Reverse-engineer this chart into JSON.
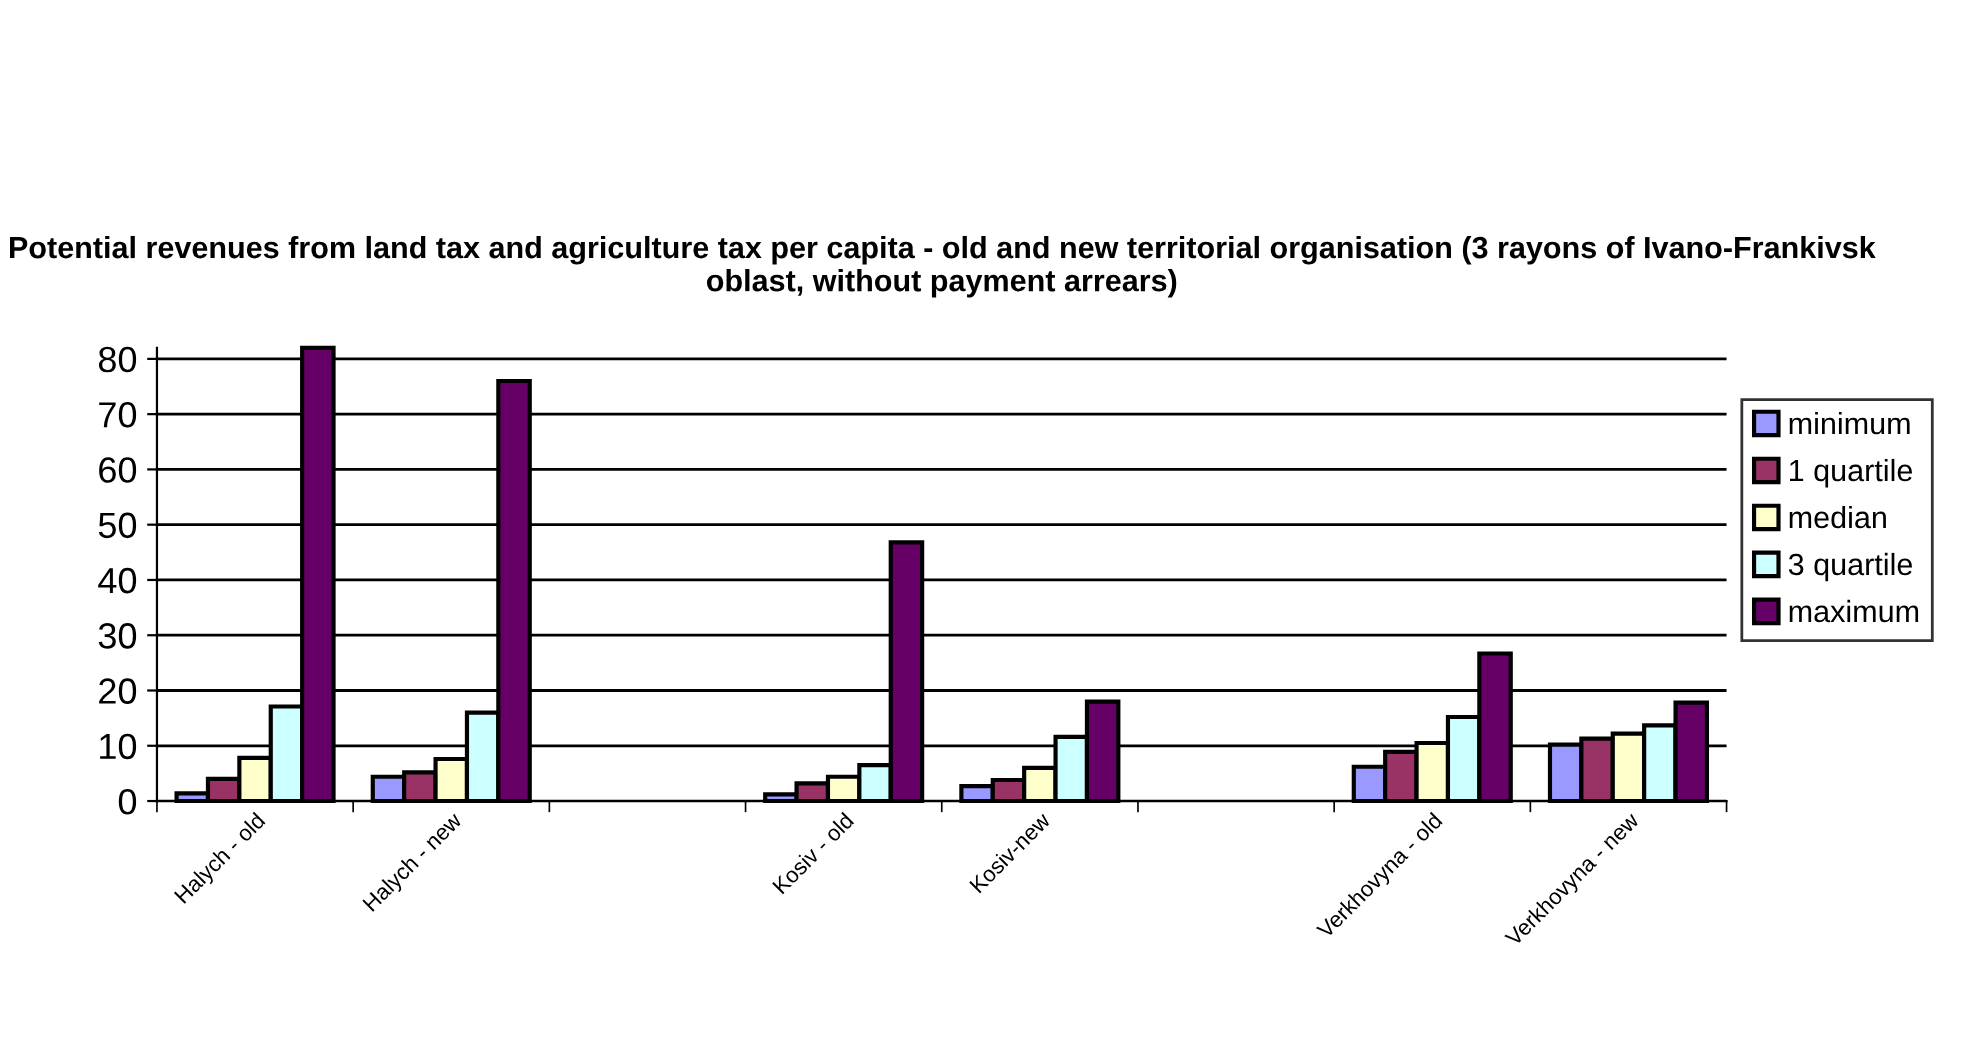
{
  "chart_data": {
    "type": "bar",
    "title": "Potential revenues from land tax and agriculture tax per capita - old and new territorial organisation (3 rayons of Ivano-Frankivsk oblast, without payment arrears)",
    "categories": [
      "Halych - old",
      "Halych - new",
      null,
      "Kosiv - old",
      "Kosiv-new",
      null,
      "Verkhovyna - old",
      "Verkhovyna - new"
    ],
    "series": [
      {
        "name": "minimum",
        "color": "#9999ff",
        "values": [
          1.4,
          4.4,
          null,
          1.2,
          2.7,
          null,
          6.2,
          10.2
        ]
      },
      {
        "name": "1 quartile",
        "color": "#993366",
        "values": [
          4.0,
          5.2,
          null,
          3.2,
          3.8,
          null,
          8.9,
          11.3
        ]
      },
      {
        "name": "median",
        "color": "#ffffcc",
        "values": [
          7.8,
          7.6,
          null,
          4.4,
          6.0,
          null,
          10.5,
          12.2
        ]
      },
      {
        "name": "3 quartile",
        "color": "#ccffff",
        "values": [
          17.1,
          16.0,
          null,
          6.5,
          11.6,
          null,
          15.2,
          13.7
        ]
      },
      {
        "name": "maximum",
        "color": "#660066",
        "values": [
          82,
          76,
          null,
          46.8,
          18.0,
          null,
          26.7,
          17.8
        ]
      }
    ],
    "ylim": [
      0,
      82
    ],
    "yticks": [
      0,
      10,
      20,
      30,
      40,
      50,
      60,
      70,
      80
    ],
    "grid": "y",
    "legend": "right"
  }
}
